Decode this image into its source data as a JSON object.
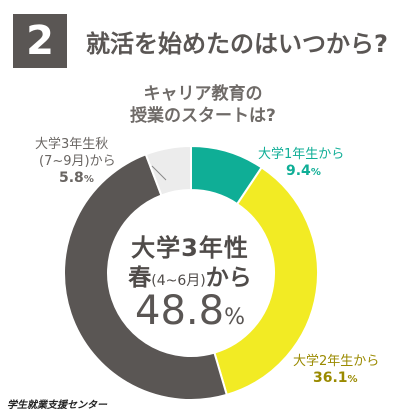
{
  "header": {
    "number": "2",
    "title": "就活を始めたのはいつから?"
  },
  "chart_data": {
    "type": "pie",
    "title": "キャリア教育の授業のスタートは?",
    "title_lines": [
      "キャリア教育の",
      "授業のスタートは?"
    ],
    "center_label_line1": "大学3年性",
    "center_label_line2_main": "春",
    "center_label_line2_small": "(4~6月)",
    "center_label_line2_end": "から",
    "center_value": "48.8",
    "center_unit": "%",
    "slices": [
      {
        "label": "大学1年生から",
        "value": 9.4,
        "value_text": "9.4",
        "color": "#0fae96"
      },
      {
        "label": "大学2年生から",
        "value": 36.1,
        "value_text": "36.1",
        "color": "#f2eb24"
      },
      {
        "label": "大学3年生春(4~6月)から",
        "value": 48.8,
        "value_text": "48.8",
        "color": "#5a5654"
      },
      {
        "label_line1": "大学3年生秋",
        "label_line2": "(7~9月)から",
        "value": 5.8,
        "value_text": "5.8",
        "color": "#ececec"
      }
    ],
    "unit": "%"
  },
  "source": "学生就業支援センター"
}
